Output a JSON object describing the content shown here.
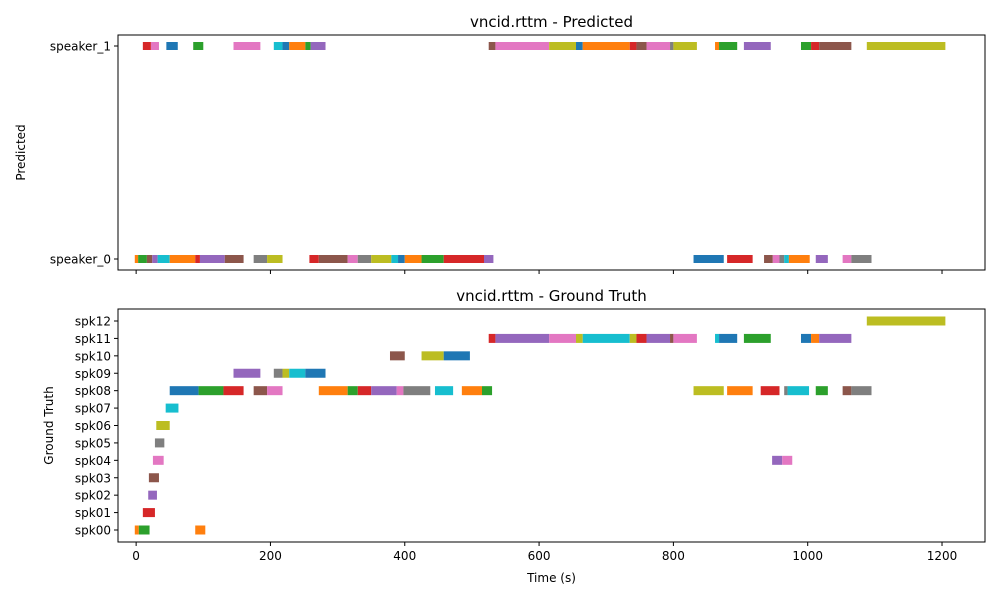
{
  "chart_data": [
    {
      "type": "timeline",
      "title": "vncid.rttm - Predicted",
      "xlabel": "",
      "ylabel": "Predicted",
      "xlim": [
        -27,
        1264
      ],
      "xticks": [
        0,
        200,
        400,
        600,
        800,
        1000,
        1200
      ],
      "tick_labels_shown": false,
      "categories": [
        "speaker_0",
        "speaker_1"
      ],
      "grid": false,
      "palette": [
        "#1f77b4",
        "#ff7f0e",
        "#2ca02c",
        "#d62728",
        "#9467bd",
        "#8c564b",
        "#e377c2",
        "#7f7f7f",
        "#bcbd22",
        "#17becf"
      ],
      "segments": [
        {
          "row": "speaker_1",
          "start": 10,
          "end": 22,
          "color": "#d62728"
        },
        {
          "row": "speaker_1",
          "start": 22,
          "end": 34,
          "color": "#e377c2"
        },
        {
          "row": "speaker_1",
          "start": 45,
          "end": 62,
          "color": "#1f77b4"
        },
        {
          "row": "speaker_1",
          "start": 85,
          "end": 100,
          "color": "#2ca02c"
        },
        {
          "row": "speaker_1",
          "start": 145,
          "end": 185,
          "color": "#e377c2"
        },
        {
          "row": "speaker_1",
          "start": 205,
          "end": 218,
          "color": "#17becf"
        },
        {
          "row": "speaker_1",
          "start": 218,
          "end": 228,
          "color": "#1f77b4"
        },
        {
          "row": "speaker_1",
          "start": 228,
          "end": 252,
          "color": "#ff7f0e"
        },
        {
          "row": "speaker_1",
          "start": 252,
          "end": 260,
          "color": "#2ca02c"
        },
        {
          "row": "speaker_1",
          "start": 260,
          "end": 282,
          "color": "#9467bd"
        },
        {
          "row": "speaker_1",
          "start": 525,
          "end": 535,
          "color": "#8c564b"
        },
        {
          "row": "speaker_1",
          "start": 535,
          "end": 615,
          "color": "#e377c2"
        },
        {
          "row": "speaker_1",
          "start": 615,
          "end": 655,
          "color": "#bcbd22"
        },
        {
          "row": "speaker_1",
          "start": 655,
          "end": 665,
          "color": "#1f77b4"
        },
        {
          "row": "speaker_1",
          "start": 665,
          "end": 735,
          "color": "#ff7f0e"
        },
        {
          "row": "speaker_1",
          "start": 735,
          "end": 745,
          "color": "#d62728"
        },
        {
          "row": "speaker_1",
          "start": 745,
          "end": 760,
          "color": "#8c564b"
        },
        {
          "row": "speaker_1",
          "start": 760,
          "end": 795,
          "color": "#e377c2"
        },
        {
          "row": "speaker_1",
          "start": 795,
          "end": 800,
          "color": "#7f7f7f"
        },
        {
          "row": "speaker_1",
          "start": 800,
          "end": 835,
          "color": "#bcbd22"
        },
        {
          "row": "speaker_1",
          "start": 862,
          "end": 868,
          "color": "#ff7f0e"
        },
        {
          "row": "speaker_1",
          "start": 868,
          "end": 895,
          "color": "#2ca02c"
        },
        {
          "row": "speaker_1",
          "start": 905,
          "end": 945,
          "color": "#9467bd"
        },
        {
          "row": "speaker_1",
          "start": 990,
          "end": 1005,
          "color": "#2ca02c"
        },
        {
          "row": "speaker_1",
          "start": 1005,
          "end": 1017,
          "color": "#d62728"
        },
        {
          "row": "speaker_1",
          "start": 1017,
          "end": 1065,
          "color": "#8c564b"
        },
        {
          "row": "speaker_1",
          "start": 1088,
          "end": 1205,
          "color": "#bcbd22"
        },
        {
          "row": "speaker_0",
          "start": -2,
          "end": 3,
          "color": "#ff7f0e"
        },
        {
          "row": "speaker_0",
          "start": 3,
          "end": 16,
          "color": "#2ca02c"
        },
        {
          "row": "speaker_0",
          "start": 16,
          "end": 24,
          "color": "#8c564b"
        },
        {
          "row": "speaker_0",
          "start": 24,
          "end": 32,
          "color": "#9467bd"
        },
        {
          "row": "speaker_0",
          "start": 32,
          "end": 50,
          "color": "#17becf"
        },
        {
          "row": "speaker_0",
          "start": 50,
          "end": 88,
          "color": "#ff7f0e"
        },
        {
          "row": "speaker_0",
          "start": 88,
          "end": 95,
          "color": "#d62728"
        },
        {
          "row": "speaker_0",
          "start": 95,
          "end": 132,
          "color": "#9467bd"
        },
        {
          "row": "speaker_0",
          "start": 132,
          "end": 160,
          "color": "#8c564b"
        },
        {
          "row": "speaker_0",
          "start": 175,
          "end": 195,
          "color": "#7f7f7f"
        },
        {
          "row": "speaker_0",
          "start": 195,
          "end": 218,
          "color": "#bcbd22"
        },
        {
          "row": "speaker_0",
          "start": 258,
          "end": 272,
          "color": "#d62728"
        },
        {
          "row": "speaker_0",
          "start": 272,
          "end": 315,
          "color": "#8c564b"
        },
        {
          "row": "speaker_0",
          "start": 315,
          "end": 330,
          "color": "#e377c2"
        },
        {
          "row": "speaker_0",
          "start": 330,
          "end": 350,
          "color": "#7f7f7f"
        },
        {
          "row": "speaker_0",
          "start": 350,
          "end": 380,
          "color": "#bcbd22"
        },
        {
          "row": "speaker_0",
          "start": 380,
          "end": 390,
          "color": "#17becf"
        },
        {
          "row": "speaker_0",
          "start": 390,
          "end": 400,
          "color": "#1f77b4"
        },
        {
          "row": "speaker_0",
          "start": 400,
          "end": 425,
          "color": "#ff7f0e"
        },
        {
          "row": "speaker_0",
          "start": 425,
          "end": 458,
          "color": "#2ca02c"
        },
        {
          "row": "speaker_0",
          "start": 458,
          "end": 518,
          "color": "#d62728"
        },
        {
          "row": "speaker_0",
          "start": 518,
          "end": 532,
          "color": "#9467bd"
        },
        {
          "row": "speaker_0",
          "start": 830,
          "end": 875,
          "color": "#1f77b4"
        },
        {
          "row": "speaker_0",
          "start": 880,
          "end": 918,
          "color": "#d62728"
        },
        {
          "row": "speaker_0",
          "start": 935,
          "end": 948,
          "color": "#8c564b"
        },
        {
          "row": "speaker_0",
          "start": 948,
          "end": 958,
          "color": "#e377c2"
        },
        {
          "row": "speaker_0",
          "start": 958,
          "end": 965,
          "color": "#7f7f7f"
        },
        {
          "row": "speaker_0",
          "start": 965,
          "end": 972,
          "color": "#17becf"
        },
        {
          "row": "speaker_0",
          "start": 972,
          "end": 1003,
          "color": "#ff7f0e"
        },
        {
          "row": "speaker_0",
          "start": 1012,
          "end": 1030,
          "color": "#9467bd"
        },
        {
          "row": "speaker_0",
          "start": 1052,
          "end": 1065,
          "color": "#e377c2"
        },
        {
          "row": "speaker_0",
          "start": 1065,
          "end": 1095,
          "color": "#7f7f7f"
        }
      ]
    },
    {
      "type": "timeline",
      "title": "vncid.rttm - Ground Truth",
      "xlabel": "Time (s)",
      "ylabel": "Ground Truth",
      "xlim": [
        -27,
        1264
      ],
      "xticks": [
        0,
        200,
        400,
        600,
        800,
        1000,
        1200
      ],
      "tick_labels_shown": true,
      "categories": [
        "spk00",
        "spk01",
        "spk02",
        "spk03",
        "spk04",
        "spk05",
        "spk06",
        "spk07",
        "spk08",
        "spk09",
        "spk10",
        "spk11",
        "spk12"
      ],
      "grid": false,
      "segments": [
        {
          "row": "spk00",
          "start": -2,
          "end": 4,
          "color": "#ff7f0e"
        },
        {
          "row": "spk00",
          "start": 4,
          "end": 20,
          "color": "#2ca02c"
        },
        {
          "row": "spk00",
          "start": 88,
          "end": 103,
          "color": "#ff7f0e"
        },
        {
          "row": "spk01",
          "start": 10,
          "end": 28,
          "color": "#d62728"
        },
        {
          "row": "spk02",
          "start": 18,
          "end": 31,
          "color": "#9467bd"
        },
        {
          "row": "spk03",
          "start": 19,
          "end": 34,
          "color": "#8c564b"
        },
        {
          "row": "spk04",
          "start": 25,
          "end": 41,
          "color": "#e377c2"
        },
        {
          "row": "spk04",
          "start": 947,
          "end": 962,
          "color": "#9467bd"
        },
        {
          "row": "spk04",
          "start": 962,
          "end": 977,
          "color": "#e377c2"
        },
        {
          "row": "spk05",
          "start": 28,
          "end": 42,
          "color": "#7f7f7f"
        },
        {
          "row": "spk06",
          "start": 30,
          "end": 50,
          "color": "#bcbd22"
        },
        {
          "row": "spk07",
          "start": 44,
          "end": 63,
          "color": "#17becf"
        },
        {
          "row": "spk08",
          "start": 50,
          "end": 93,
          "color": "#1f77b4"
        },
        {
          "row": "spk08",
          "start": 93,
          "end": 130,
          "color": "#2ca02c"
        },
        {
          "row": "spk08",
          "start": 130,
          "end": 160,
          "color": "#d62728"
        },
        {
          "row": "spk08",
          "start": 175,
          "end": 195,
          "color": "#8c564b"
        },
        {
          "row": "spk08",
          "start": 195,
          "end": 218,
          "color": "#e377c2"
        },
        {
          "row": "spk08",
          "start": 272,
          "end": 315,
          "color": "#ff7f0e"
        },
        {
          "row": "spk08",
          "start": 315,
          "end": 330,
          "color": "#2ca02c"
        },
        {
          "row": "spk08",
          "start": 330,
          "end": 350,
          "color": "#d62728"
        },
        {
          "row": "spk08",
          "start": 350,
          "end": 388,
          "color": "#9467bd"
        },
        {
          "row": "spk08",
          "start": 388,
          "end": 398,
          "color": "#e377c2"
        },
        {
          "row": "spk08",
          "start": 398,
          "end": 438,
          "color": "#7f7f7f"
        },
        {
          "row": "spk08",
          "start": 445,
          "end": 472,
          "color": "#17becf"
        },
        {
          "row": "spk08",
          "start": 485,
          "end": 515,
          "color": "#ff7f0e"
        },
        {
          "row": "spk08",
          "start": 515,
          "end": 530,
          "color": "#2ca02c"
        },
        {
          "row": "spk08",
          "start": 830,
          "end": 875,
          "color": "#bcbd22"
        },
        {
          "row": "spk08",
          "start": 880,
          "end": 918,
          "color": "#ff7f0e"
        },
        {
          "row": "spk08",
          "start": 930,
          "end": 958,
          "color": "#d62728"
        },
        {
          "row": "spk08",
          "start": 965,
          "end": 970,
          "color": "#7f7f7f"
        },
        {
          "row": "spk08",
          "start": 970,
          "end": 1002,
          "color": "#17becf"
        },
        {
          "row": "spk08",
          "start": 1012,
          "end": 1030,
          "color": "#2ca02c"
        },
        {
          "row": "spk08",
          "start": 1052,
          "end": 1065,
          "color": "#8c564b"
        },
        {
          "row": "spk08",
          "start": 1065,
          "end": 1095,
          "color": "#7f7f7f"
        },
        {
          "row": "spk09",
          "start": 145,
          "end": 185,
          "color": "#9467bd"
        },
        {
          "row": "spk09",
          "start": 205,
          "end": 218,
          "color": "#7f7f7f"
        },
        {
          "row": "spk09",
          "start": 218,
          "end": 228,
          "color": "#bcbd22"
        },
        {
          "row": "spk09",
          "start": 228,
          "end": 252,
          "color": "#17becf"
        },
        {
          "row": "spk09",
          "start": 252,
          "end": 282,
          "color": "#1f77b4"
        },
        {
          "row": "spk10",
          "start": 378,
          "end": 400,
          "color": "#8c564b"
        },
        {
          "row": "spk10",
          "start": 425,
          "end": 458,
          "color": "#bcbd22"
        },
        {
          "row": "spk10",
          "start": 458,
          "end": 497,
          "color": "#1f77b4"
        },
        {
          "row": "spk11",
          "start": 525,
          "end": 535,
          "color": "#d62728"
        },
        {
          "row": "spk11",
          "start": 535,
          "end": 615,
          "color": "#9467bd"
        },
        {
          "row": "spk11",
          "start": 615,
          "end": 655,
          "color": "#e377c2"
        },
        {
          "row": "spk11",
          "start": 655,
          "end": 665,
          "color": "#bcbd22"
        },
        {
          "row": "spk11",
          "start": 665,
          "end": 735,
          "color": "#17becf"
        },
        {
          "row": "spk11",
          "start": 735,
          "end": 745,
          "color": "#bcbd22"
        },
        {
          "row": "spk11",
          "start": 745,
          "end": 760,
          "color": "#d62728"
        },
        {
          "row": "spk11",
          "start": 760,
          "end": 795,
          "color": "#9467bd"
        },
        {
          "row": "spk11",
          "start": 795,
          "end": 800,
          "color": "#8c564b"
        },
        {
          "row": "spk11",
          "start": 800,
          "end": 835,
          "color": "#e377c2"
        },
        {
          "row": "spk11",
          "start": 862,
          "end": 868,
          "color": "#17becf"
        },
        {
          "row": "spk11",
          "start": 868,
          "end": 895,
          "color": "#1f77b4"
        },
        {
          "row": "spk11",
          "start": 905,
          "end": 945,
          "color": "#2ca02c"
        },
        {
          "row": "spk11",
          "start": 990,
          "end": 1005,
          "color": "#1f77b4"
        },
        {
          "row": "spk11",
          "start": 1005,
          "end": 1017,
          "color": "#ff7f0e"
        },
        {
          "row": "spk11",
          "start": 1017,
          "end": 1065,
          "color": "#9467bd"
        },
        {
          "row": "spk12",
          "start": 1088,
          "end": 1205,
          "color": "#bcbd22"
        }
      ]
    }
  ]
}
